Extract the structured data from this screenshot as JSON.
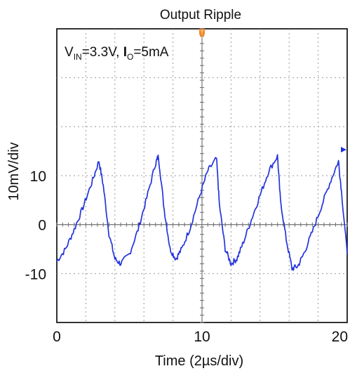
{
  "chart_data": {
    "type": "line",
    "title": "Output Ripple",
    "xlabel": "Time (2µs/div)",
    "ylabel": "10mV/div",
    "xlim": [
      0,
      20
    ],
    "ylim": [
      -20,
      40
    ],
    "x_ticks": [
      {
        "value": 0,
        "label": "0"
      },
      {
        "value": 10,
        "label": "10"
      },
      {
        "value": 20,
        "label": "20"
      }
    ],
    "y_ticks": [
      {
        "value": 10,
        "label": "10"
      },
      {
        "value": 0,
        "label": "0"
      },
      {
        "value": -10,
        "label": "-10"
      }
    ],
    "grid": true,
    "annotation": {
      "v_symbol": "V",
      "v_sub": "IN",
      "v_value": "=3.3V, ",
      "i_symbol": "I",
      "i_sub": "O",
      "i_value": "=5mA"
    },
    "trigger_marker": "T",
    "colors": {
      "trace": "#2233dd",
      "grid": "#9a9a9a",
      "frame": "#000000",
      "trigger": "#f08a2c"
    },
    "series": [
      {
        "x": [
          0,
          0.6,
          1.2,
          1.8,
          2.4,
          2.9,
          3.2,
          3.6,
          4.0,
          4.4,
          5.0,
          5.6,
          6.2,
          6.8,
          7.0,
          7.4,
          7.8,
          8.2,
          8.6,
          9.2,
          9.8,
          10.4,
          11.0,
          11.2,
          11.6,
          12.0,
          12.4,
          12.8,
          13.4,
          14.0,
          14.6,
          15.2,
          15.4,
          15.8,
          16.2,
          16.6,
          17.0,
          17.6,
          18.2,
          18.8,
          19.4,
          19.6,
          20.0
        ],
        "y": [
          -7.5,
          -5,
          -1,
          3.5,
          8.5,
          13,
          8,
          -2,
          -7,
          -8,
          -6,
          -1,
          5.5,
          12.5,
          14,
          3,
          -5,
          -7,
          -5,
          -0.5,
          5.5,
          11,
          13.5,
          4,
          -5,
          -8,
          -7,
          -4,
          1,
          6,
          11,
          14,
          5,
          -3,
          -9,
          -8.5,
          -6,
          -1.5,
          3.5,
          8.5,
          13,
          7,
          -6
        ]
      }
    ]
  }
}
